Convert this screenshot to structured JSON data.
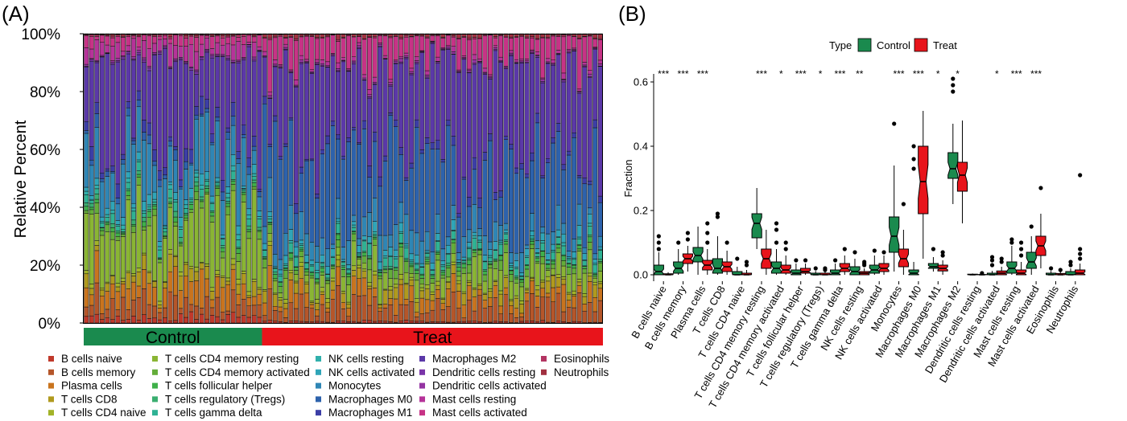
{
  "panels": {
    "a": "(A)",
    "b": "(B)"
  },
  "colors": {
    "control": "#1a8a4e",
    "treat": "#e8141b",
    "cells": [
      "#c0392b",
      "#b5562a",
      "#c9741e",
      "#b09a1e",
      "#a2b328",
      "#8ab534",
      "#64ad3a",
      "#3fb04a",
      "#3aae70",
      "#2fb294",
      "#30b0ac",
      "#2fa5b8",
      "#2f86b5",
      "#2d62ac",
      "#3c3ea6",
      "#5b38a8",
      "#7a34a8",
      "#9434a2",
      "#b63399",
      "#c73386",
      "#b33462",
      "#a13040"
    ]
  },
  "stacked": {
    "ylabel": "Relative Percent",
    "yticks": [
      "0%",
      "20%",
      "40%",
      "60%",
      "80%",
      "100%"
    ],
    "groups": [
      {
        "label": "Control",
        "count": 34
      },
      {
        "label": "Treat",
        "count": 65
      }
    ]
  },
  "legend": {
    "columns": [
      [
        "B cells naive",
        "B cells memory",
        "Plasma cells",
        "T cells CD8",
        "T cells CD4 naive"
      ],
      [
        "T cells CD4 memory resting",
        "T cells CD4 memory activated",
        "T cells follicular helper",
        "T cells regulatory (Tregs)",
        "T cells gamma delta"
      ],
      [
        "NK cells resting",
        "NK cells activated",
        "Monocytes",
        "Macrophages M0",
        "Macrophages M1"
      ],
      [
        "Macrophages M2",
        "Dendritic cells resting",
        "Dendritic cells activated",
        "Mast cells resting",
        "Mast cells activated"
      ],
      [
        "Eosinophils",
        "Neutrophils"
      ]
    ]
  },
  "box": {
    "legend_title": "Type",
    "legend_items": [
      "Control",
      "Treat"
    ],
    "ylabel": "Fraction",
    "yticks": [
      "0.0",
      "0.2",
      "0.4",
      "0.6"
    ]
  },
  "chart_data": [
    {
      "type": "bar",
      "subtype": "stacked-percent",
      "title": "",
      "xlabel": "",
      "ylabel": "Relative Percent",
      "ylim": [
        0,
        1
      ],
      "groups": [
        {
          "name": "Control",
          "n": 34
        },
        {
          "name": "Treat",
          "n": 65
        }
      ],
      "series_names": [
        "B cells naive",
        "B cells memory",
        "Plasma cells",
        "T cells CD8",
        "T cells CD4 naive",
        "T cells CD4 memory resting",
        "T cells CD4 memory activated",
        "T cells follicular helper",
        "T cells regulatory (Tregs)",
        "T cells gamma delta",
        "NK cells resting",
        "NK cells activated",
        "Monocytes",
        "Macrophages M0",
        "Macrophages M1",
        "Macrophages M2",
        "Dendritic cells resting",
        "Dendritic cells activated",
        "Mast cells resting",
        "Mast cells activated",
        "Eosinophils",
        "Neutrophils"
      ],
      "mean_fraction_control": [
        0.02,
        0.05,
        0.06,
        0.03,
        0.01,
        0.17,
        0.02,
        0.01,
        0.01,
        0.02,
        0.01,
        0.02,
        0.14,
        0.02,
        0.03,
        0.34,
        0.005,
        0.005,
        0.04,
        0.03,
        0.005,
        0.005
      ],
      "mean_fraction_treat": [
        0.005,
        0.06,
        0.04,
        0.03,
        0.01,
        0.06,
        0.02,
        0.01,
        0.005,
        0.02,
        0.005,
        0.02,
        0.06,
        0.29,
        0.02,
        0.31,
        0.003,
        0.005,
        0.01,
        0.09,
        0.003,
        0.01
      ]
    },
    {
      "type": "box",
      "title": "",
      "xlabel": "",
      "ylabel": "Fraction",
      "ylim": [
        -0.02,
        0.64
      ],
      "series_names": [
        "Control",
        "Treat"
      ],
      "categories": [
        "B cells naive",
        "B cells memory",
        "Plasma cells",
        "T cells CD8",
        "T cells CD4 naive",
        "T cells CD4 memory resting",
        "T cells CD4 memory activated",
        "T cells follicular helper",
        "T cells regulatory (Tregs)",
        "T cells gamma delta",
        "NK cells resting",
        "NK cells activated",
        "Monocytes",
        "Macrophages M0",
        "Macrophages M1",
        "Macrophages M2",
        "Dendritic cells resting",
        "Dendritic cells activated",
        "Mast cells resting",
        "Mast cells activated",
        "Eosinophils",
        "Neutrophils"
      ],
      "significance": [
        "***",
        "***",
        "***",
        "",
        "",
        "***",
        "*",
        "***",
        "*",
        "***",
        "**",
        "",
        "***",
        "***",
        "*",
        "*",
        "",
        "*",
        "***",
        "***",
        "",
        ""
      ],
      "control": [
        {
          "min": 0,
          "q1": 0,
          "median": 0.01,
          "q3": 0.03,
          "max": 0.07,
          "outliers": [
            0.08,
            0.1,
            0.12
          ]
        },
        {
          "min": 0,
          "q1": 0.005,
          "median": 0.02,
          "q3": 0.04,
          "max": 0.08,
          "outliers": [
            0.1
          ]
        },
        {
          "min": 0,
          "q1": 0.04,
          "median": 0.06,
          "q3": 0.085,
          "max": 0.15,
          "outliers": []
        },
        {
          "min": 0,
          "q1": 0.005,
          "median": 0.02,
          "q3": 0.05,
          "max": 0.12,
          "outliers": [
            0.18,
            0.19
          ]
        },
        {
          "min": 0,
          "q1": 0,
          "median": 0,
          "q3": 0.01,
          "max": 0.025,
          "outliers": [
            0.05
          ]
        },
        {
          "min": 0.08,
          "q1": 0.115,
          "median": 0.16,
          "q3": 0.19,
          "max": 0.27,
          "outliers": []
        },
        {
          "min": 0,
          "q1": 0.005,
          "median": 0.02,
          "q3": 0.04,
          "max": 0.08,
          "outliers": [
            0.1,
            0.14,
            0.16
          ]
        },
        {
          "min": 0,
          "q1": 0,
          "median": 0.005,
          "q3": 0.015,
          "max": 0.035,
          "outliers": [
            0.045
          ]
        },
        {
          "min": 0,
          "q1": 0,
          "median": 0,
          "q3": 0.005,
          "max": 0.012,
          "outliers": [
            0.02
          ]
        },
        {
          "min": 0,
          "q1": 0,
          "median": 0.005,
          "q3": 0.015,
          "max": 0.035,
          "outliers": [
            0.045
          ]
        },
        {
          "min": 0,
          "q1": 0,
          "median": 0.01,
          "q3": 0.025,
          "max": 0.05,
          "outliers": [
            0.07
          ]
        },
        {
          "min": 0,
          "q1": 0.005,
          "median": 0.015,
          "q3": 0.03,
          "max": 0.06,
          "outliers": [
            0.075
          ]
        },
        {
          "min": 0.01,
          "q1": 0.07,
          "median": 0.12,
          "q3": 0.18,
          "max": 0.34,
          "outliers": [
            0.47
          ]
        },
        {
          "min": 0,
          "q1": 0,
          "median": 0.005,
          "q3": 0.015,
          "max": 0.04,
          "outliers": [
            0.33,
            0.36,
            0.4
          ]
        },
        {
          "min": 0.01,
          "q1": 0.02,
          "median": 0.025,
          "q3": 0.035,
          "max": 0.055,
          "outliers": [
            0.08
          ]
        },
        {
          "min": 0.22,
          "q1": 0.3,
          "median": 0.33,
          "q3": 0.38,
          "max": 0.47,
          "outliers": [
            0.57,
            0.59,
            0.61
          ]
        },
        {
          "min": 0,
          "q1": 0,
          "median": 0,
          "q3": 0.002,
          "max": 0.004,
          "outliers": []
        },
        {
          "min": 0,
          "q1": 0,
          "median": 0,
          "q3": 0.005,
          "max": 0.012,
          "outliers": [
            0.03,
            0.045,
            0.055
          ]
        },
        {
          "min": 0,
          "q1": 0.005,
          "median": 0.02,
          "q3": 0.04,
          "max": 0.09,
          "outliers": [
            0.1,
            0.11
          ]
        },
        {
          "min": 0,
          "q1": 0.02,
          "median": 0.04,
          "q3": 0.07,
          "max": 0.12,
          "outliers": [
            0.15
          ]
        },
        {
          "min": 0,
          "q1": 0,
          "median": 0,
          "q3": 0.005,
          "max": 0.012,
          "outliers": [
            0.02
          ]
        },
        {
          "min": 0,
          "q1": 0,
          "median": 0,
          "q3": 0.01,
          "max": 0.02,
          "outliers": [
            0.03,
            0.04
          ]
        }
      ],
      "treat": [
        {
          "min": 0,
          "q1": 0,
          "median": 0,
          "q3": 0.003,
          "max": 0.008,
          "outliers": []
        },
        {
          "min": 0.01,
          "q1": 0.035,
          "median": 0.05,
          "q3": 0.065,
          "max": 0.09,
          "outliers": [
            0.11,
            0.13
          ]
        },
        {
          "min": 0,
          "q1": 0.015,
          "median": 0.03,
          "q3": 0.045,
          "max": 0.08,
          "outliers": [
            0.1,
            0.13,
            0.16
          ]
        },
        {
          "min": 0,
          "q1": 0.01,
          "median": 0.025,
          "q3": 0.04,
          "max": 0.075,
          "outliers": [
            0.1
          ]
        },
        {
          "min": 0,
          "q1": 0,
          "median": 0,
          "q3": 0.005,
          "max": 0.015,
          "outliers": [
            0.03,
            0.04
          ]
        },
        {
          "min": 0,
          "q1": 0.02,
          "median": 0.05,
          "q3": 0.08,
          "max": 0.14,
          "outliers": []
        },
        {
          "min": 0,
          "q1": 0.005,
          "median": 0.015,
          "q3": 0.03,
          "max": 0.06,
          "outliers": [
            0.08,
            0.1
          ]
        },
        {
          "min": 0,
          "q1": 0.005,
          "median": 0.01,
          "q3": 0.02,
          "max": 0.035,
          "outliers": [
            0.045
          ]
        },
        {
          "min": 0,
          "q1": 0,
          "median": 0,
          "q3": 0.005,
          "max": 0.012,
          "outliers": [
            0.015,
            0.02
          ]
        },
        {
          "min": 0,
          "q1": 0.01,
          "median": 0.02,
          "q3": 0.035,
          "max": 0.06,
          "outliers": [
            0.08
          ]
        },
        {
          "min": 0,
          "q1": 0,
          "median": 0.005,
          "q3": 0.01,
          "max": 0.02,
          "outliers": [
            0.03,
            0.035,
            0.04
          ]
        },
        {
          "min": 0,
          "q1": 0.01,
          "median": 0.02,
          "q3": 0.035,
          "max": 0.06,
          "outliers": [
            0.07
          ]
        },
        {
          "min": 0,
          "q1": 0.025,
          "median": 0.05,
          "q3": 0.08,
          "max": 0.14,
          "outliers": [
            0.22
          ]
        },
        {
          "min": 0.05,
          "q1": 0.19,
          "median": 0.29,
          "q3": 0.4,
          "max": 0.51,
          "outliers": []
        },
        {
          "min": 0,
          "q1": 0.012,
          "median": 0.02,
          "q3": 0.03,
          "max": 0.045,
          "outliers": [
            0.06,
            0.07
          ]
        },
        {
          "min": 0.16,
          "q1": 0.26,
          "median": 0.31,
          "q3": 0.35,
          "max": 0.48,
          "outliers": []
        },
        {
          "min": 0,
          "q1": 0,
          "median": 0,
          "q3": 0.001,
          "max": 0.003,
          "outliers": [
            0.005
          ]
        },
        {
          "min": 0,
          "q1": 0,
          "median": 0.005,
          "q3": 0.012,
          "max": 0.025,
          "outliers": [
            0.04,
            0.05
          ]
        },
        {
          "min": 0,
          "q1": 0,
          "median": 0.005,
          "q3": 0.015,
          "max": 0.04,
          "outliers": [
            0.06,
            0.08,
            0.1
          ]
        },
        {
          "min": 0.02,
          "q1": 0.06,
          "median": 0.09,
          "q3": 0.12,
          "max": 0.19,
          "outliers": [
            0.27
          ]
        },
        {
          "min": 0,
          "q1": 0,
          "median": 0,
          "q3": 0.004,
          "max": 0.01,
          "outliers": [
            0.015
          ]
        },
        {
          "min": 0,
          "q1": 0,
          "median": 0.005,
          "q3": 0.015,
          "max": 0.035,
          "outliers": [
            0.05,
            0.065,
            0.08,
            0.31
          ]
        }
      ]
    }
  ]
}
